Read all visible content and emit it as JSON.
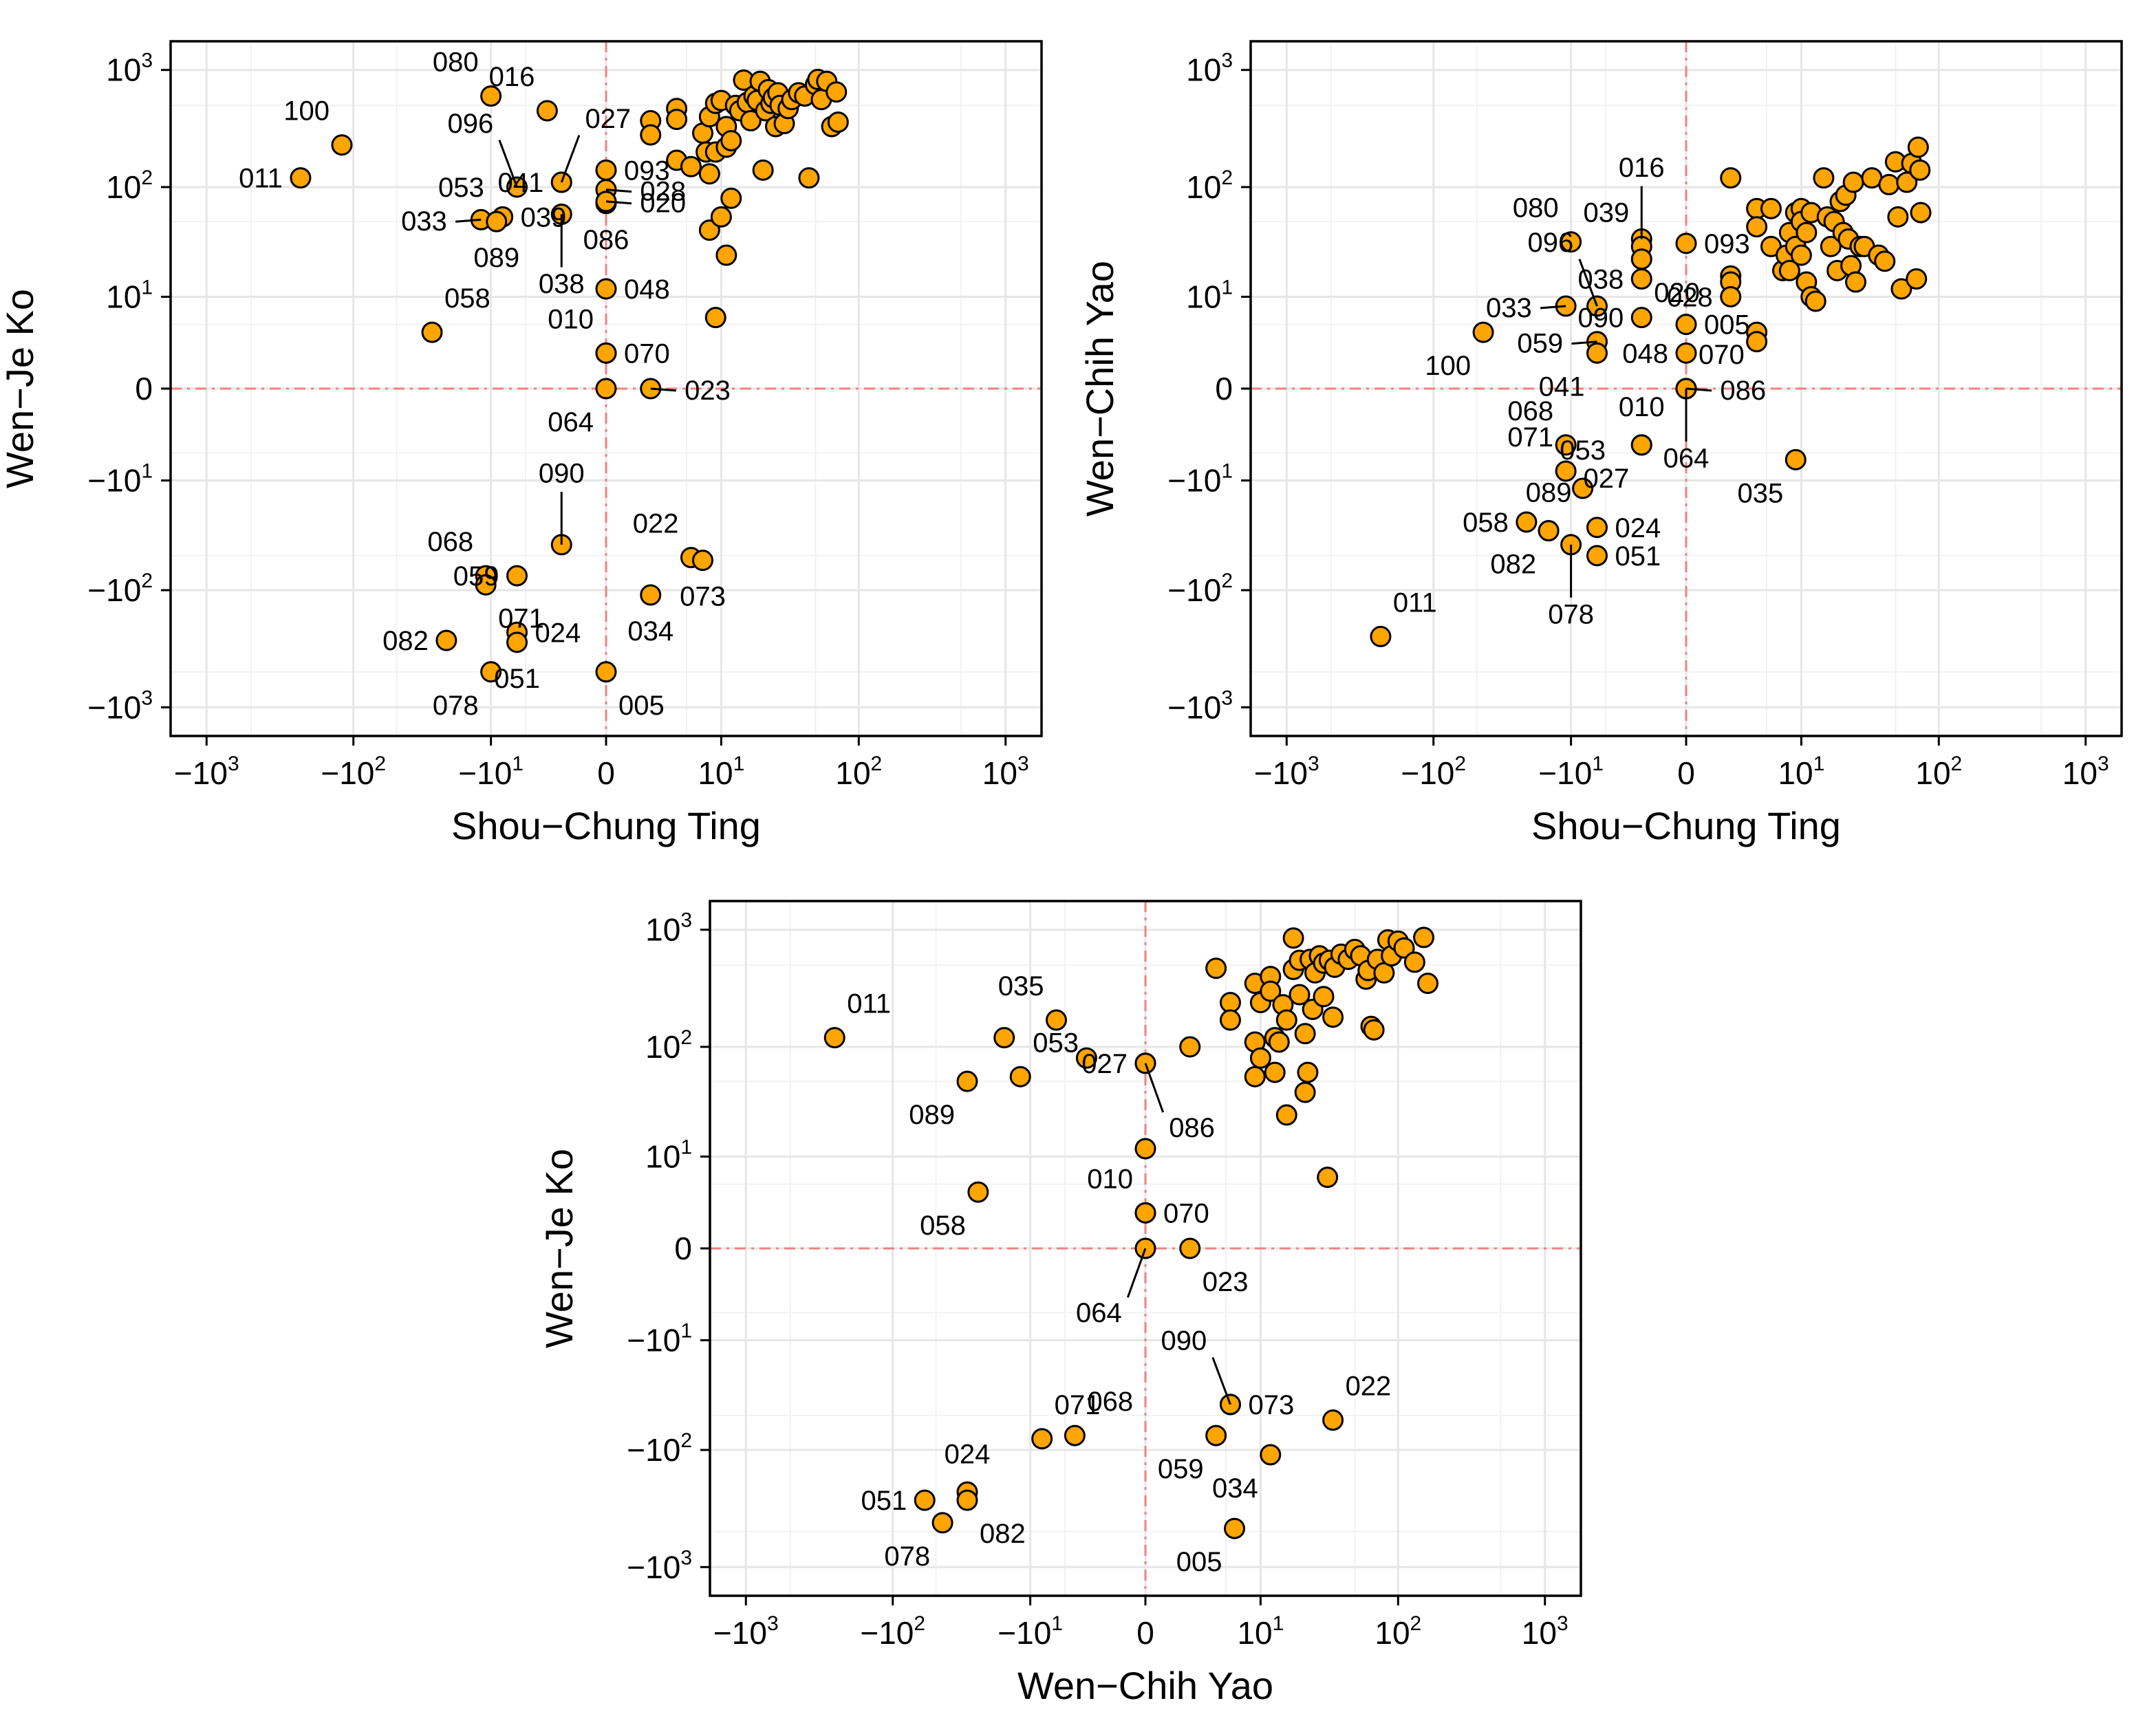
{
  "chart_data": [
    {
      "id": "panel-a",
      "type": "scatter",
      "title": "",
      "xlabel": "Shou−Chung Ting",
      "ylabel": "Wen−Je Ko",
      "scale": "pseudo-log",
      "xlim": [
        -1000,
        1000
      ],
      "ylim": [
        -1000,
        1000
      ],
      "ref_lines": {
        "x": 0,
        "y": 0
      },
      "grid": true,
      "ticks": [
        {
          "value": -1000,
          "base": "−10",
          "exp": "3"
        },
        {
          "value": -100,
          "base": "−10",
          "exp": "2"
        },
        {
          "value": -10,
          "base": "−10",
          "exp": "1"
        },
        {
          "value": 0,
          "base": "0",
          "exp": ""
        },
        {
          "value": 10,
          "base": "10",
          "exp": "1"
        },
        {
          "value": 100,
          "base": "10",
          "exp": "2"
        },
        {
          "value": 1000,
          "base": "10",
          "exp": "3"
        }
      ],
      "labeled_points": [
        {
          "label": "080",
          "x": -10,
          "y": 600,
          "pos": "top-left"
        },
        {
          "label": "016",
          "x": -3,
          "y": 450,
          "pos": "top-left"
        },
        {
          "label": "027",
          "x": -2,
          "y": 110,
          "pos": "top-right",
          "leader": true
        },
        {
          "label": "100",
          "x": -120,
          "y": 230,
          "pos": "top-left"
        },
        {
          "label": "096",
          "x": -6,
          "y": 100,
          "pos": "top-left",
          "leader": true
        },
        {
          "label": "041",
          "x": -2,
          "y": 110,
          "pos": "left"
        },
        {
          "label": "093",
          "x": 0,
          "y": 140,
          "pos": "right"
        },
        {
          "label": "011",
          "x": -230,
          "y": 120,
          "pos": "left"
        },
        {
          "label": "053",
          "x": -9,
          "y": 50,
          "pos": "top-left"
        },
        {
          "label": "039",
          "x": -8,
          "y": 55,
          "pos": "right"
        },
        {
          "label": "028",
          "x": 0,
          "y": 95,
          "pos": "right",
          "leader": true
        },
        {
          "label": "033",
          "x": -12,
          "y": 52,
          "pos": "left",
          "leader": true
        },
        {
          "label": "089",
          "x": -9,
          "y": 50,
          "pos": "bottom"
        },
        {
          "label": "086",
          "x": 0,
          "y": 72,
          "pos": "bottom"
        },
        {
          "label": "020",
          "x": 0,
          "y": 75,
          "pos": "right",
          "leader": true
        },
        {
          "label": "038",
          "x": -2,
          "y": 58,
          "pos": "bottom",
          "leader": true
        },
        {
          "label": "048",
          "x": 0,
          "y": 12,
          "pos": "right"
        },
        {
          "label": "058",
          "x": -28,
          "y": 4,
          "pos": "top-right"
        },
        {
          "label": "010",
          "x": 0,
          "y": 2,
          "pos": "top-left"
        },
        {
          "label": "070",
          "x": 0,
          "y": 2,
          "pos": "right"
        },
        {
          "label": "064",
          "x": 0,
          "y": 0,
          "pos": "bottom-left"
        },
        {
          "label": "023",
          "x": 2,
          "y": 0,
          "pos": "right",
          "leader": true
        },
        {
          "label": "090",
          "x": -2,
          "y": -40,
          "pos": "top",
          "leader": true
        },
        {
          "label": "068",
          "x": -11,
          "y": -75,
          "pos": "top-left"
        },
        {
          "label": "059",
          "x": -6,
          "y": -75,
          "pos": "left"
        },
        {
          "label": "022",
          "x": 5.5,
          "y": -52,
          "pos": "top-left"
        },
        {
          "label": "073",
          "x": 7,
          "y": -55,
          "pos": "bottom"
        },
        {
          "label": "071",
          "x": -11,
          "y": -90,
          "pos": "bottom-right"
        },
        {
          "label": "024",
          "x": -6,
          "y": -230,
          "pos": "right"
        },
        {
          "label": "034",
          "x": 2,
          "y": -110,
          "pos": "bottom"
        },
        {
          "label": "082",
          "x": -22,
          "y": -270,
          "pos": "left"
        },
        {
          "label": "051",
          "x": -6,
          "y": -280,
          "pos": "bottom"
        },
        {
          "label": "078",
          "x": -10,
          "y": -500,
          "pos": "bottom-left"
        },
        {
          "label": "005",
          "x": 0,
          "y": -500,
          "pos": "bottom-right"
        }
      ],
      "other_points": [
        [
          2,
          370
        ],
        [
          2,
          280
        ],
        [
          4,
          470
        ],
        [
          4,
          380
        ],
        [
          4,
          170
        ],
        [
          5.5,
          150
        ],
        [
          7,
          290
        ],
        [
          7.5,
          200
        ],
        [
          8,
          130
        ],
        [
          8,
          400
        ],
        [
          9,
          520
        ],
        [
          9,
          200
        ],
        [
          10,
          550
        ],
        [
          11,
          330
        ],
        [
          11,
          220
        ],
        [
          12,
          250
        ],
        [
          13,
          500
        ],
        [
          14,
          450
        ],
        [
          15,
          820
        ],
        [
          16,
          530
        ],
        [
          17,
          370
        ],
        [
          18,
          600
        ],
        [
          19,
          550
        ],
        [
          20,
          800
        ],
        [
          21,
          140
        ],
        [
          22,
          450
        ],
        [
          23,
          680
        ],
        [
          24,
          520
        ],
        [
          25,
          580
        ],
        [
          26,
          330
        ],
        [
          27,
          640
        ],
        [
          28,
          500
        ],
        [
          30,
          350
        ],
        [
          32,
          470
        ],
        [
          34,
          560
        ],
        [
          38,
          640
        ],
        [
          42,
          600
        ],
        [
          45,
          120
        ],
        [
          50,
          750
        ],
        [
          52,
          830
        ],
        [
          55,
          560
        ],
        [
          60,
          800
        ],
        [
          65,
          330
        ],
        [
          70,
          650
        ],
        [
          72,
          360
        ],
        [
          8,
          42
        ],
        [
          10,
          55
        ],
        [
          12,
          80
        ],
        [
          11,
          25
        ],
        [
          9,
          6
        ]
      ]
    },
    {
      "id": "panel-b",
      "type": "scatter",
      "title": "",
      "xlabel": "Shou−Chung Ting",
      "ylabel": "Wen−Chih Yao",
      "scale": "pseudo-log",
      "xlim": [
        -1000,
        1000
      ],
      "ylim": [
        -1000,
        1000
      ],
      "ref_lines": {
        "x": 0,
        "y": 0
      },
      "grid": true,
      "labeled_points": [
        {
          "label": "016",
          "x": -2,
          "y": 35,
          "pos": "top",
          "leader": true
        },
        {
          "label": "080",
          "x": -10,
          "y": 33,
          "pos": "top-left"
        },
        {
          "label": "039",
          "x": -2,
          "y": 30,
          "pos": "top-left"
        },
        {
          "label": "093",
          "x": 0,
          "y": 32,
          "pos": "right"
        },
        {
          "label": "020",
          "x": -2,
          "y": 23,
          "pos": "bottom-right"
        },
        {
          "label": "096",
          "x": -6,
          "y": 8,
          "pos": "top-left",
          "leader": true
        },
        {
          "label": "038",
          "x": -2,
          "y": 15,
          "pos": "left"
        },
        {
          "label": "028",
          "x": 2,
          "y": 10,
          "pos": "left"
        },
        {
          "label": "033",
          "x": -11,
          "y": 8,
          "pos": "left",
          "leader": true
        },
        {
          "label": "005",
          "x": 0,
          "y": 5,
          "pos": "right"
        },
        {
          "label": "090",
          "x": -2,
          "y": 6,
          "pos": "left"
        },
        {
          "label": "059",
          "x": -6,
          "y": 3,
          "pos": "left",
          "leader": true
        },
        {
          "label": "100",
          "x": -45,
          "y": 4,
          "pos": "bottom-left"
        },
        {
          "label": "048",
          "x": 0,
          "y": 2,
          "pos": "left"
        },
        {
          "label": "070",
          "x": 0,
          "y": 0,
          "pos": "top-right"
        },
        {
          "label": "041",
          "x": -6,
          "y": 2,
          "pos": "bottom-left"
        },
        {
          "label": "086",
          "x": 0,
          "y": 0,
          "pos": "right",
          "leader": true
        },
        {
          "label": "068",
          "x": -11,
          "y": -4,
          "pos": "top-left"
        },
        {
          "label": "010",
          "x": -2,
          "y": -4,
          "pos": "top"
        },
        {
          "label": "064",
          "x": 0,
          "y": 0,
          "pos": "bottom",
          "leader": true
        },
        {
          "label": "071",
          "x": -11,
          "y": -8,
          "pos": "top-left"
        },
        {
          "label": "027",
          "x": -2,
          "y": -4,
          "pos": "bottom-left"
        },
        {
          "label": "053",
          "x": -8,
          "y": -12,
          "pos": "top"
        },
        {
          "label": "035",
          "x": 9,
          "y": -6,
          "pos": "bottom-left"
        },
        {
          "label": "058",
          "x": -22,
          "y": -25,
          "pos": "left"
        },
        {
          "label": "089",
          "x": -15,
          "y": -30,
          "pos": "top"
        },
        {
          "label": "024",
          "x": -6,
          "y": -28,
          "pos": "right"
        },
        {
          "label": "082",
          "x": -15,
          "y": -30,
          "pos": "bottom-left"
        },
        {
          "label": "078",
          "x": -10,
          "y": -40,
          "pos": "bottom",
          "leader": true
        },
        {
          "label": "051",
          "x": -6,
          "y": -50,
          "pos": "right"
        },
        {
          "label": "011",
          "x": -230,
          "y": -250,
          "pos": "top-right"
        }
      ],
      "other_points": [
        [
          2,
          120
        ],
        [
          2,
          16
        ],
        [
          2,
          14
        ],
        [
          4,
          65
        ],
        [
          4,
          45
        ],
        [
          4,
          4
        ],
        [
          4,
          3
        ],
        [
          5.5,
          65
        ],
        [
          5.5,
          30
        ],
        [
          7,
          18
        ],
        [
          7.5,
          25
        ],
        [
          8,
          40
        ],
        [
          8,
          18
        ],
        [
          9,
          60
        ],
        [
          9,
          30
        ],
        [
          10,
          65
        ],
        [
          10,
          50
        ],
        [
          10,
          25
        ],
        [
          11,
          40
        ],
        [
          11,
          14
        ],
        [
          12,
          60
        ],
        [
          12,
          10
        ],
        [
          13,
          9
        ],
        [
          15,
          120
        ],
        [
          16,
          55
        ],
        [
          17,
          30
        ],
        [
          18,
          50
        ],
        [
          19,
          18
        ],
        [
          20,
          75
        ],
        [
          21,
          40
        ],
        [
          22,
          85
        ],
        [
          23,
          35
        ],
        [
          24,
          20
        ],
        [
          25,
          110
        ],
        [
          26,
          14
        ],
        [
          28,
          30
        ],
        [
          30,
          30
        ],
        [
          34,
          120
        ],
        [
          38,
          25
        ],
        [
          42,
          22
        ],
        [
          45,
          105
        ],
        [
          50,
          165
        ],
        [
          55,
          12
        ],
        [
          60,
          110
        ],
        [
          65,
          160
        ],
        [
          70,
          15
        ],
        [
          72,
          220
        ],
        [
          74,
          140
        ],
        [
          75,
          60
        ],
        [
          52,
          55
        ]
      ]
    },
    {
      "id": "panel-c",
      "type": "scatter",
      "title": "",
      "xlabel": "Wen−Chih Yao",
      "ylabel": "Wen−Je Ko",
      "scale": "pseudo-log",
      "xlim": [
        -1000,
        1000
      ],
      "ylim": [
        -1000,
        1000
      ],
      "ref_lines": {
        "x": 0,
        "y": 0
      },
      "grid": true,
      "labeled_points": [
        {
          "label": "011",
          "x": -250,
          "y": 120,
          "pos": "top-right"
        },
        {
          "label": "035",
          "x": -6,
          "y": 170,
          "pos": "top-left"
        },
        {
          "label": "053",
          "x": -12,
          "y": 55,
          "pos": "top-right"
        },
        {
          "label": "027",
          "x": 0,
          "y": 72,
          "pos": "left"
        },
        {
          "label": "086",
          "x": 0,
          "y": 72,
          "pos": "bottom-right",
          "leader": true
        },
        {
          "label": "089",
          "x": -30,
          "y": 50,
          "pos": "bottom-left"
        },
        {
          "label": "010",
          "x": 0,
          "y": 2,
          "pos": "top-left"
        },
        {
          "label": "058",
          "x": -25,
          "y": 4,
          "pos": "bottom-left"
        },
        {
          "label": "070",
          "x": 0,
          "y": 2,
          "pos": "right"
        },
        {
          "label": "064",
          "x": 0,
          "y": 0,
          "pos": "bottom-left",
          "leader": true
        },
        {
          "label": "023",
          "x": 2,
          "y": 0,
          "pos": "bottom-right"
        },
        {
          "label": "090",
          "x": 5.5,
          "y": -40,
          "pos": "top-left",
          "leader": true
        },
        {
          "label": "073",
          "x": 5.5,
          "y": -40,
          "pos": "right"
        },
        {
          "label": "022",
          "x": 35,
          "y": -55,
          "pos": "top-right"
        },
        {
          "label": "071",
          "x": -8,
          "y": -80,
          "pos": "top-right"
        },
        {
          "label": "068",
          "x": -4,
          "y": -75,
          "pos": "top-right"
        },
        {
          "label": "059",
          "x": 4,
          "y": -75,
          "pos": "bottom-left"
        },
        {
          "label": "024",
          "x": -30,
          "y": -230,
          "pos": "top"
        },
        {
          "label": "051",
          "x": -60,
          "y": -270,
          "pos": "left"
        },
        {
          "label": "082",
          "x": -30,
          "y": -270,
          "pos": "bottom-right"
        },
        {
          "label": "034",
          "x": 12,
          "y": -110,
          "pos": "bottom-left"
        },
        {
          "label": "078",
          "x": -45,
          "y": -420,
          "pos": "bottom-left"
        },
        {
          "label": "005",
          "x": 6,
          "y": -470,
          "pos": "bottom-left"
        }
      ],
      "other_points": [
        [
          -16,
          120
        ],
        [
          -3,
          80
        ],
        [
          0,
          12
        ],
        [
          4,
          470
        ],
        [
          5.5,
          240
        ],
        [
          5.5,
          170
        ],
        [
          2,
          100
        ],
        [
          9,
          110
        ],
        [
          9,
          55
        ],
        [
          9,
          350
        ],
        [
          10,
          80
        ],
        [
          10,
          240
        ],
        [
          12,
          400
        ],
        [
          12,
          300
        ],
        [
          13,
          60
        ],
        [
          13,
          120
        ],
        [
          14,
          110
        ],
        [
          15,
          230
        ],
        [
          16,
          170
        ],
        [
          16,
          25
        ],
        [
          18,
          850
        ],
        [
          18,
          460
        ],
        [
          20,
          280
        ],
        [
          20,
          550
        ],
        [
          22,
          40
        ],
        [
          22,
          130
        ],
        [
          23,
          60
        ],
        [
          24,
          560
        ],
        [
          25,
          210
        ],
        [
          26,
          430
        ],
        [
          28,
          600
        ],
        [
          30,
          270
        ],
        [
          30,
          520
        ],
        [
          32,
          6
        ],
        [
          33,
          550
        ],
        [
          35,
          180
        ],
        [
          36,
          480
        ],
        [
          40,
          620
        ],
        [
          45,
          560
        ],
        [
          50,
          680
        ],
        [
          55,
          600
        ],
        [
          60,
          380
        ],
        [
          62,
          450
        ],
        [
          65,
          150
        ],
        [
          68,
          140
        ],
        [
          72,
          560
        ],
        [
          80,
          430
        ],
        [
          85,
          820
        ],
        [
          90,
          600
        ],
        [
          100,
          800
        ],
        [
          110,
          700
        ],
        [
          130,
          530
        ],
        [
          150,
          860
        ],
        [
          160,
          350
        ]
      ]
    }
  ]
}
